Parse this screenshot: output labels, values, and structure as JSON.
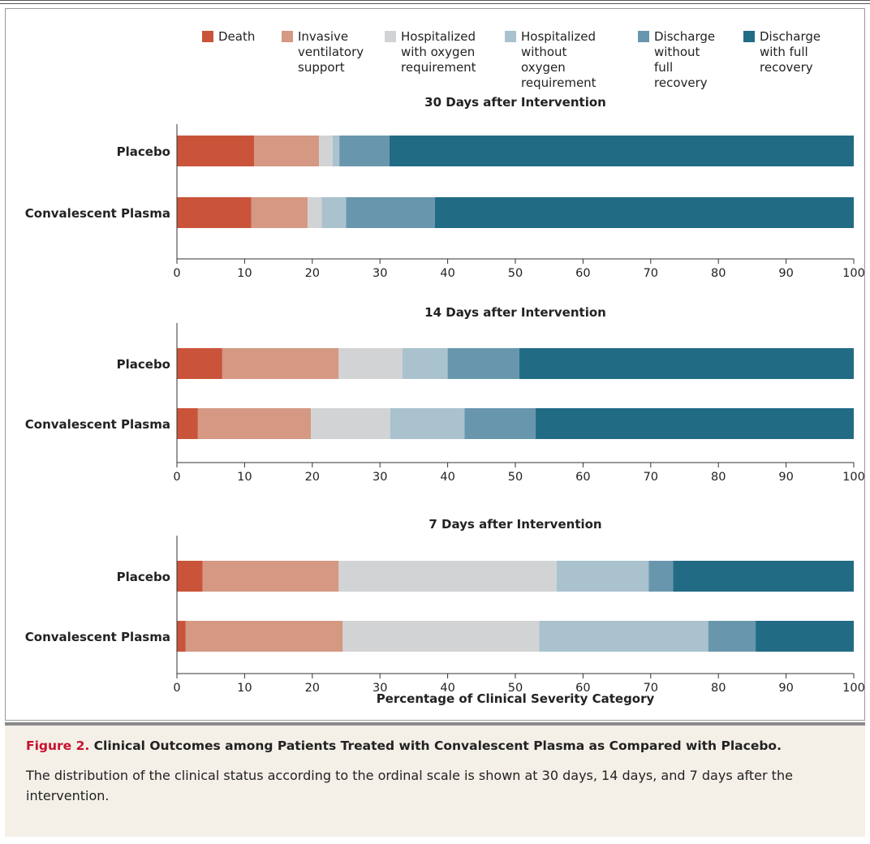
{
  "colors": {
    "death": "#c9543a",
    "invasive": "#d49883",
    "hosp_oxygen": "#d2d3d5",
    "hosp_no_oxygen": "#aac2ce",
    "discharge_partial": "#6897ad",
    "discharge_full": "#226b85",
    "figure_label": "#c8102e",
    "caption_bg": "#f4f0e8"
  },
  "legend": [
    {
      "label": "Death",
      "key": "death"
    },
    {
      "label": "Invasive\nventilatory\nsupport",
      "key": "invasive"
    },
    {
      "label": "Hospitalized\nwith oxygen\nrequirement",
      "key": "hosp_oxygen"
    },
    {
      "label": "Hospitalized\nwithout oxygen\nrequirement",
      "key": "hosp_no_oxygen"
    },
    {
      "label": "Discharge\nwithout full\nrecovery",
      "key": "discharge_partial"
    },
    {
      "label": "Discharge\nwith full\nrecovery",
      "key": "discharge_full"
    }
  ],
  "chart_data": {
    "type": "bar",
    "orientation": "horizontal",
    "stacked": true,
    "xlabel": "Percentage of Clinical Severity Category",
    "xlim": [
      0,
      100
    ],
    "xticks": [
      0,
      10,
      20,
      30,
      40,
      50,
      60,
      70,
      80,
      90,
      100
    ],
    "legend_position": "top",
    "categories_order": [
      "Death",
      "Invasive ventilatory support",
      "Hospitalized with oxygen requirement",
      "Hospitalized without oxygen requirement",
      "Discharge without full recovery",
      "Discharge with full recovery"
    ],
    "panels": [
      {
        "title": "30 Days after Intervention",
        "bars": [
          {
            "label": "Placebo",
            "values": [
              11.4,
              9.6,
              2.0,
              1.0,
              7.4,
              68.6
            ]
          },
          {
            "label": "Convalescent Plasma",
            "values": [
              11.0,
              8.3,
              2.1,
              3.6,
              13.1,
              61.9
            ]
          }
        ]
      },
      {
        "title": "14 Days after Intervention",
        "bars": [
          {
            "label": "Placebo",
            "values": [
              6.7,
              17.2,
              9.4,
              6.7,
              10.6,
              49.4
            ]
          },
          {
            "label": "Convalescent Plasma",
            "values": [
              3.1,
              16.7,
              11.7,
              11.0,
              10.5,
              47.0
            ]
          }
        ]
      },
      {
        "title": "7 Days after Intervention",
        "bars": [
          {
            "label": "Placebo",
            "values": [
              3.8,
              20.1,
              32.2,
              13.6,
              3.6,
              26.7
            ]
          },
          {
            "label": "Convalescent Plasma",
            "values": [
              1.3,
              23.2,
              29.0,
              25.0,
              7.0,
              14.5
            ]
          }
        ]
      }
    ]
  },
  "caption": {
    "figure_label": "Figure 2.",
    "title": "Clinical Outcomes among Patients Treated with Convalescent Plasma as Compared with Placebo.",
    "body": "The distribution of the clinical status according to the ordinal scale is shown at 30 days, 14 days, and 7 days after the intervention."
  }
}
